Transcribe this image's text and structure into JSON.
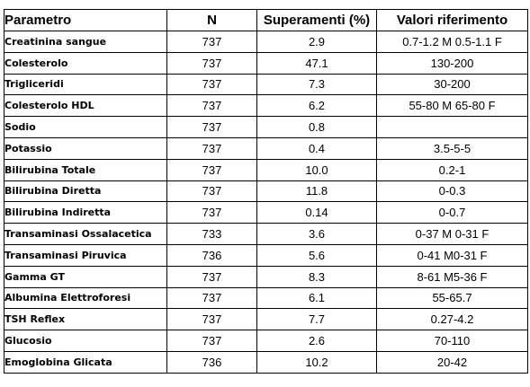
{
  "table": {
    "headers": {
      "parametro": "Parametro",
      "n": "N",
      "superamenti": "Superamenti (%)",
      "valori": "Valori riferimento"
    },
    "rows": [
      {
        "parametro": "Creatinina sangue",
        "n": "737",
        "superamenti": "2.9",
        "valori": "0.7-1.2 M 0.5-1.1 F"
      },
      {
        "parametro": "Colesterolo",
        "n": "737",
        "superamenti": "47.1",
        "valori": "130-200"
      },
      {
        "parametro": "Trigliceridi",
        "n": "737",
        "superamenti": "7.3",
        "valori": "30-200"
      },
      {
        "parametro": "Colesterolo HDL",
        "n": "737",
        "superamenti": "6.2",
        "valori": "55-80 M 65-80 F"
      },
      {
        "parametro": "Sodio",
        "n": "737",
        "superamenti": "0.8",
        "valori": ""
      },
      {
        "parametro": "Potassio",
        "n": "737",
        "superamenti": "0.4",
        "valori": "3.5-5-5"
      },
      {
        "parametro": "Bilirubina Totale",
        "n": "737",
        "superamenti": "10.0",
        "valori": "0.2-1"
      },
      {
        "parametro": "Bilirubina Diretta",
        "n": "737",
        "superamenti": "11.8",
        "valori": "0-0.3"
      },
      {
        "parametro": "Bilirubina Indiretta",
        "n": "737",
        "superamenti": "0.14",
        "valori": "0-0.7"
      },
      {
        "parametro": "Transaminasi Ossalacetica",
        "n": "733",
        "superamenti": "3.6",
        "valori": "0-37 M 0-31 F"
      },
      {
        "parametro": "Transaminasi Piruvica",
        "n": "736",
        "superamenti": "5.6",
        "valori": "0-41 M0-31 F"
      },
      {
        "parametro": "Gamma GT",
        "n": "737",
        "superamenti": "8.3",
        "valori": "8-61 M5-36 F"
      },
      {
        "parametro": "Albumina Elettroforesi",
        "n": "737",
        "superamenti": "6.1",
        "valori": "55-65.7"
      },
      {
        "parametro": "TSH Reflex",
        "n": "737",
        "superamenti": "7.7",
        "valori": "0.27-4.2"
      },
      {
        "parametro": "Glucosio",
        "n": "737",
        "superamenti": "2.6",
        "valori": "70-110"
      },
      {
        "parametro": "Emoglobina Glicata",
        "n": "736",
        "superamenti": "10.2",
        "valori": "20-42"
      }
    ]
  }
}
